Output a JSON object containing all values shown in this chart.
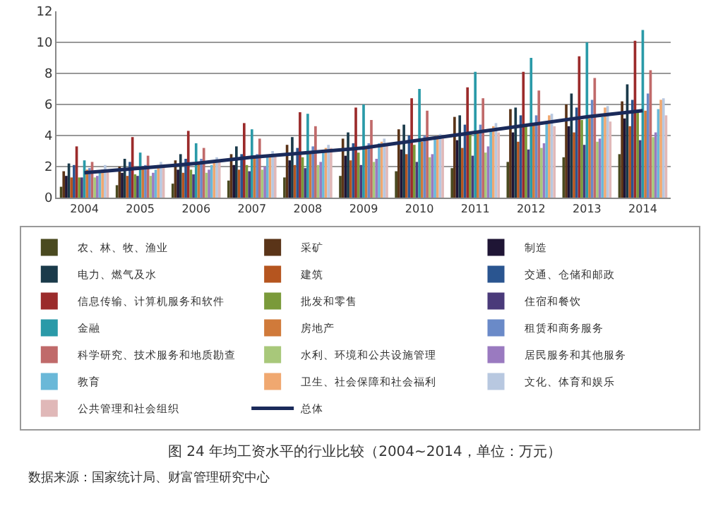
{
  "chart_data": {
    "type": "bar",
    "categories": [
      "2004",
      "2005",
      "2006",
      "2007",
      "2008",
      "2009",
      "2010",
      "2011",
      "2012",
      "2013",
      "2014"
    ],
    "ylim": [
      0,
      12
    ],
    "yticks": [
      0,
      2,
      4,
      6,
      8,
      10,
      12
    ],
    "grid": "y",
    "legend": "bottom",
    "annotations": [
      "图 24 年均工资水平的行业比较（2004~2014，单位：万元）",
      "数据来源：国家统计局、财富管理研究中心"
    ],
    "series": [
      {
        "name": "农、林、牧、渔业",
        "color": "#4a4a20",
        "values": [
          0.7,
          0.8,
          0.9,
          1.1,
          1.3,
          1.4,
          1.7,
          1.9,
          2.3,
          2.6,
          2.8
        ]
      },
      {
        "name": "采矿",
        "color": "#5a3418",
        "values": [
          1.7,
          2.0,
          2.4,
          2.8,
          3.4,
          3.8,
          4.4,
          5.2,
          5.7,
          6.0,
          6.2
        ]
      },
      {
        "name": "制造",
        "color": "#1f1535",
        "values": [
          1.4,
          1.6,
          1.8,
          2.1,
          2.4,
          2.7,
          3.1,
          3.7,
          4.2,
          4.6,
          5.1
        ]
      },
      {
        "name": "电力、燃气及水",
        "color": "#1a3a4a",
        "values": [
          2.2,
          2.5,
          2.8,
          3.3,
          3.9,
          4.2,
          4.7,
          5.3,
          5.8,
          6.7,
          7.3
        ]
      },
      {
        "name": "建筑",
        "color": "#b5551f",
        "values": [
          1.3,
          1.4,
          1.6,
          1.8,
          2.1,
          2.4,
          2.8,
          3.2,
          3.6,
          4.2,
          4.6
        ]
      },
      {
        "name": "交通、仓储和邮政",
        "color": "#2a5590",
        "values": [
          2.1,
          2.3,
          2.5,
          2.8,
          3.2,
          3.5,
          4.0,
          4.7,
          5.3,
          5.8,
          6.3
        ]
      },
      {
        "name": "信息传输、计算机服务和软件",
        "color": "#9b2b2b",
        "values": [
          3.3,
          3.9,
          4.3,
          4.8,
          5.5,
          5.8,
          6.4,
          7.1,
          8.1,
          9.1,
          10.1
        ]
      },
      {
        "name": "批发和零售",
        "color": "#7a9a3a",
        "values": [
          1.3,
          1.5,
          1.8,
          2.1,
          2.6,
          2.9,
          3.4,
          4.1,
          4.6,
          5.0,
          5.6
        ]
      },
      {
        "name": "住宿和餐饮",
        "color": "#4a3a7a",
        "values": [
          1.3,
          1.4,
          1.5,
          1.7,
          1.9,
          2.1,
          2.3,
          2.7,
          3.1,
          3.4,
          3.7
        ]
      },
      {
        "name": "金融",
        "color": "#2a9aa8",
        "values": [
          2.4,
          2.9,
          3.5,
          4.4,
          5.4,
          6.0,
          7.0,
          8.1,
          9.0,
          10.0,
          10.8
        ]
      },
      {
        "name": "房地产",
        "color": "#d07a3a",
        "values": [
          1.8,
          2.0,
          2.2,
          2.6,
          3.0,
          3.2,
          3.6,
          4.3,
          4.7,
          5.1,
          5.6
        ]
      },
      {
        "name": "租赁和商务服务",
        "color": "#6a8ac8",
        "values": [
          1.9,
          2.1,
          2.5,
          2.8,
          3.3,
          3.5,
          4.0,
          4.7,
          5.3,
          6.3,
          6.7
        ]
      },
      {
        "name": "科学研究、技术服务和地质勘查",
        "color": "#c06a6a",
        "values": [
          2.3,
          2.7,
          3.2,
          3.8,
          4.6,
          5.0,
          5.6,
          6.4,
          6.9,
          7.7,
          8.2
        ]
      },
      {
        "name": "水利、环境和公共设施管理",
        "color": "#a8c87a",
        "values": [
          1.3,
          1.4,
          1.6,
          1.8,
          2.1,
          2.3,
          2.6,
          2.9,
          3.2,
          3.6,
          3.9
        ]
      },
      {
        "name": "居民服务和其他服务",
        "color": "#9a7ac0",
        "values": [
          1.4,
          1.6,
          1.8,
          2.0,
          2.3,
          2.5,
          2.8,
          3.3,
          3.5,
          3.8,
          4.2
        ]
      },
      {
        "name": "教育",
        "color": "#6ab8d8",
        "values": [
          1.6,
          1.8,
          2.1,
          2.6,
          3.0,
          3.5,
          3.9,
          4.3,
          4.8,
          5.2,
          5.7
        ]
      },
      {
        "name": "卫生、社会保障和社会福利",
        "color": "#f0a870",
        "values": [
          1.8,
          2.1,
          2.4,
          2.8,
          3.2,
          3.6,
          4.0,
          4.6,
          5.3,
          5.8,
          6.3
        ]
      },
      {
        "name": "文化、体育和娱乐",
        "color": "#b8c8e0",
        "values": [
          2.1,
          2.3,
          2.6,
          3.0,
          3.4,
          3.8,
          4.1,
          4.8,
          5.4,
          5.9,
          6.4
        ]
      },
      {
        "name": "公共管理和社会组织",
        "color": "#e0b8b8",
        "values": [
          1.7,
          2.0,
          2.3,
          2.8,
          3.2,
          3.5,
          3.8,
          4.2,
          4.6,
          4.9,
          5.3
        ]
      },
      {
        "name": "总体",
        "color": "#1a2a5a",
        "type": "line",
        "values": [
          1.6,
          1.9,
          2.2,
          2.6,
          2.9,
          3.2,
          3.7,
          4.2,
          4.7,
          5.2,
          5.6
        ]
      }
    ]
  }
}
